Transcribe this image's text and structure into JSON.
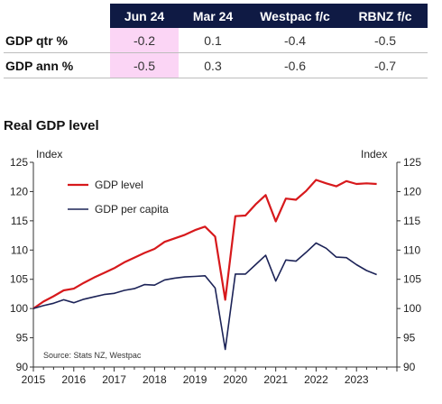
{
  "table": {
    "columns": [
      "",
      "Jun 24",
      "Mar 24",
      "Westpac f/c",
      "RBNZ f/c"
    ],
    "rows": [
      {
        "label": "GDP qtr %",
        "values": [
          "-0.2",
          "0.1",
          "-0.4",
          "-0.5"
        ]
      },
      {
        "label": "GDP ann %",
        "values": [
          "-0.5",
          "0.3",
          "-0.6",
          "-0.7"
        ]
      }
    ],
    "highlight_column": "Jun 24",
    "header_color": "#0f1a44",
    "highlight_color": "#fbd5f5"
  },
  "section_title": "Real GDP level",
  "chart_data": {
    "type": "line",
    "title": "Real GDP level",
    "y_unit_left": "Index",
    "y_unit_right": "Index",
    "ylim": [
      90,
      125
    ],
    "y_ticks": [
      90,
      95,
      100,
      105,
      110,
      115,
      120,
      125
    ],
    "xlim": [
      2015.0,
      2024.0
    ],
    "x_ticks": [
      "2015",
      "2016",
      "2017",
      "2018",
      "2019",
      "2020",
      "2021",
      "2022",
      "2023"
    ],
    "x": [
      2015.0,
      2015.25,
      2015.5,
      2015.75,
      2016.0,
      2016.25,
      2016.5,
      2016.75,
      2017.0,
      2017.25,
      2017.5,
      2017.75,
      2018.0,
      2018.25,
      2018.5,
      2018.75,
      2019.0,
      2019.25,
      2019.5,
      2019.75,
      2020.0,
      2020.25,
      2020.5,
      2020.75,
      2021.0,
      2021.25,
      2021.5,
      2021.75,
      2022.0,
      2022.25,
      2022.5,
      2022.75,
      2023.0,
      2023.25,
      2023.5
    ],
    "series": [
      {
        "name": "GDP level",
        "color": "#d7191c",
        "values": [
          100.0,
          101.2,
          102.1,
          103.1,
          103.4,
          104.4,
          105.3,
          106.1,
          106.9,
          107.9,
          108.7,
          109.5,
          110.2,
          111.4,
          112.0,
          112.6,
          113.4,
          114.0,
          112.3,
          101.5,
          115.8,
          115.9,
          117.8,
          119.4,
          114.9,
          118.8,
          118.6,
          120.1,
          122.0,
          121.4,
          120.9,
          121.8,
          121.3,
          121.4,
          121.3
        ]
      },
      {
        "name": "GDP per capita",
        "color": "#1c2357",
        "values": [
          100.0,
          100.5,
          100.9,
          101.5,
          101.0,
          101.6,
          102.0,
          102.4,
          102.6,
          103.1,
          103.4,
          104.1,
          104.0,
          104.9,
          105.2,
          105.4,
          105.5,
          105.6,
          103.5,
          93.0,
          105.9,
          105.9,
          107.5,
          109.1,
          104.7,
          108.3,
          108.1,
          109.6,
          111.2,
          110.3,
          108.8,
          108.7,
          107.5,
          106.5,
          105.8
        ]
      }
    ],
    "legend_position": "top-left",
    "annotation": "Source: Stats NZ, Westpac"
  }
}
